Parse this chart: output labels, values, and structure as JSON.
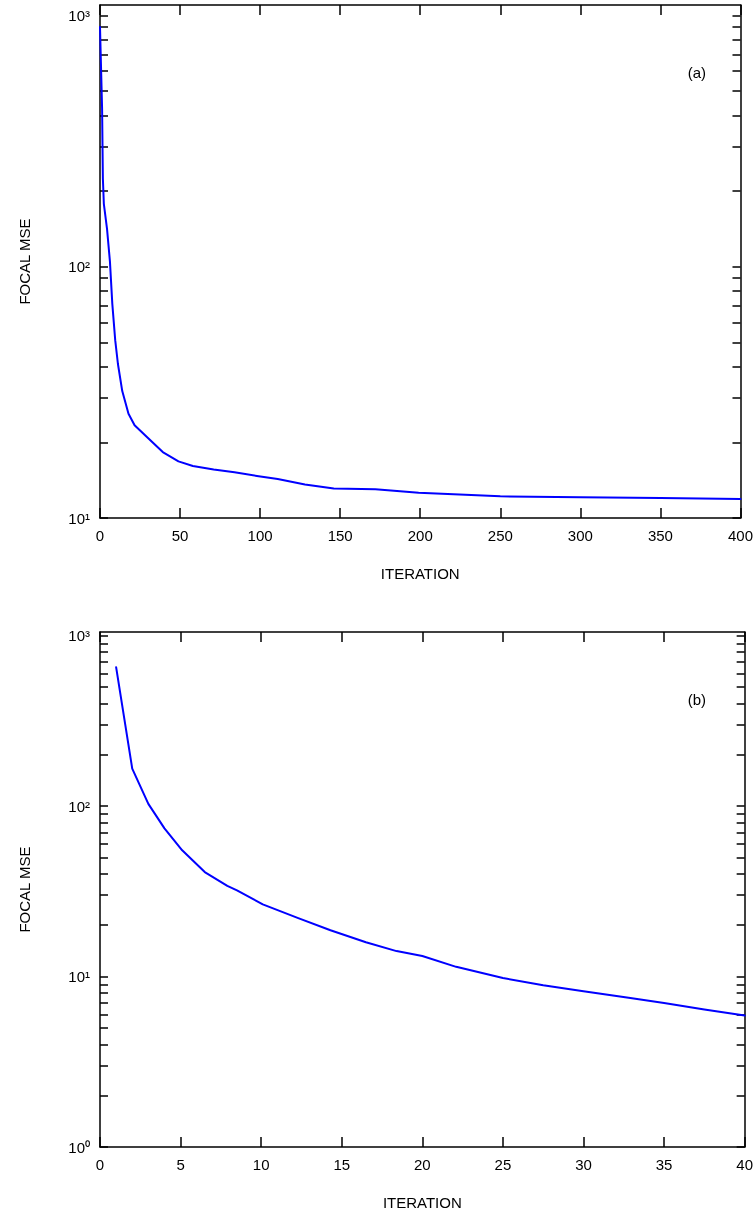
{
  "chart_data": [
    {
      "type": "line",
      "xlabel": "ITERATION",
      "ylabel": "FOCAL MSE",
      "annotations": [
        "(a)"
      ],
      "log": "y",
      "grid": false,
      "marker": "none",
      "line_style": "solid",
      "xlim": [
        0,
        400
      ],
      "xticks": [
        0,
        50,
        100,
        150,
        200,
        250,
        300,
        350,
        400
      ],
      "ylim": [
        10,
        1100
      ],
      "yticks": [
        {
          "value": 10,
          "label": "10¹"
        },
        {
          "value": 20,
          "label": null
        },
        {
          "value": 30,
          "label": null
        },
        {
          "value": 40,
          "label": null
        },
        {
          "value": 50,
          "label": null
        },
        {
          "value": 60,
          "label": null
        },
        {
          "value": 70,
          "label": null
        },
        {
          "value": 80,
          "label": null
        },
        {
          "value": 90,
          "label": null
        },
        {
          "value": 100,
          "label": "10²"
        },
        {
          "value": 200,
          "label": null
        },
        {
          "value": 300,
          "label": null
        },
        {
          "value": 400,
          "label": null
        },
        {
          "value": 500,
          "label": null
        },
        {
          "value": 600,
          "label": null
        },
        {
          "value": 700,
          "label": null
        },
        {
          "value": 800,
          "label": null
        },
        {
          "value": 900,
          "label": null
        },
        {
          "value": 1000,
          "label": "10³"
        }
      ],
      "series": [
        {
          "color": "#0000ff",
          "x": [
            0,
            1.3,
            1.8,
            2.4,
            4.4,
            6.2,
            7.7,
            9.5,
            11.2,
            13.9,
            17.8,
            21.6,
            29.3,
            39.2,
            49,
            58,
            71,
            84,
            98,
            111,
            128,
            146,
            172,
            199,
            250,
            300,
            350,
            400
          ],
          "values": [
            900,
            427,
            224,
            178,
            141,
            105,
            71,
            51,
            41,
            32,
            26,
            23.4,
            21,
            18.3,
            16.8,
            16.1,
            15.6,
            15.2,
            14.7,
            14.3,
            13.6,
            13.1,
            13.0,
            12.6,
            12.2,
            12.1,
            12.0,
            11.9
          ]
        }
      ]
    },
    {
      "type": "line",
      "xlabel": "ITERATION",
      "ylabel": "FOCAL MSE",
      "annotations": [
        "(b)"
      ],
      "log": "y",
      "grid": false,
      "marker": "none",
      "line_style": "solid",
      "xlim": [
        0,
        40
      ],
      "xticks": [
        0,
        5,
        10,
        15,
        20,
        25,
        30,
        35,
        40
      ],
      "ylim": [
        1,
        1050
      ],
      "yticks": [
        {
          "value": 1,
          "label": "10⁰"
        },
        {
          "value": 2,
          "label": null
        },
        {
          "value": 3,
          "label": null
        },
        {
          "value": 4,
          "label": null
        },
        {
          "value": 5,
          "label": null
        },
        {
          "value": 6,
          "label": null
        },
        {
          "value": 7,
          "label": null
        },
        {
          "value": 8,
          "label": null
        },
        {
          "value": 9,
          "label": null
        },
        {
          "value": 10,
          "label": "10¹"
        },
        {
          "value": 20,
          "label": null
        },
        {
          "value": 30,
          "label": null
        },
        {
          "value": 40,
          "label": null
        },
        {
          "value": 50,
          "label": null
        },
        {
          "value": 60,
          "label": null
        },
        {
          "value": 70,
          "label": null
        },
        {
          "value": 80,
          "label": null
        },
        {
          "value": 90,
          "label": null
        },
        {
          "value": 100,
          "label": "10²"
        },
        {
          "value": 200,
          "label": null
        },
        {
          "value": 300,
          "label": null
        },
        {
          "value": 400,
          "label": null
        },
        {
          "value": 500,
          "label": null
        },
        {
          "value": 600,
          "label": null
        },
        {
          "value": 700,
          "label": null
        },
        {
          "value": 800,
          "label": null
        },
        {
          "value": 900,
          "label": null
        },
        {
          "value": 1000,
          "label": "10³"
        }
      ],
      "series": [
        {
          "color": "#0000ff",
          "x": [
            1,
            2,
            3,
            4,
            5.1,
            6.5,
            7.9,
            8.5,
            10.1,
            12.3,
            14.3,
            16.5,
            18.4,
            20,
            22.1,
            25,
            27.5,
            30,
            32.8,
            35,
            37.5,
            40
          ],
          "values": [
            653,
            166,
            103,
            74,
            55,
            41,
            34,
            32,
            26.5,
            22,
            18.7,
            15.9,
            14.1,
            13.2,
            11.4,
            9.8,
            8.9,
            8.2,
            7.5,
            7.0,
            6.4,
            5.9
          ]
        }
      ]
    }
  ]
}
